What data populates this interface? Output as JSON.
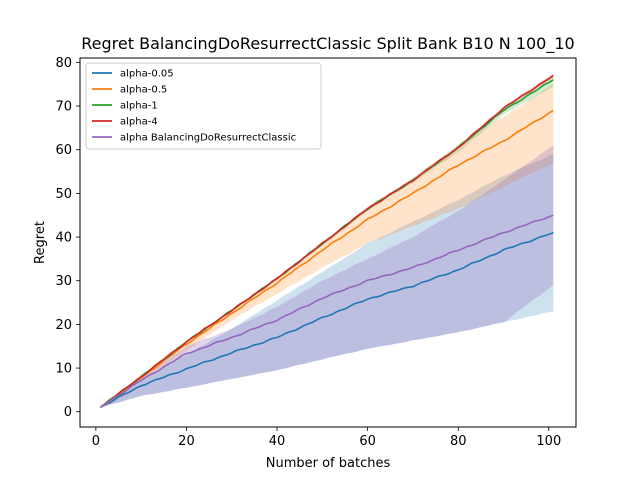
{
  "chart_data": {
    "type": "line",
    "title": "Regret BalancingDoResurrectClassic Split Bank B10 N 100_10",
    "xlabel": "Number of batches",
    "ylabel": "Regret",
    "xlim": [
      -3.5,
      106
    ],
    "ylim": [
      -3.5,
      81
    ],
    "xticks": [
      0,
      20,
      40,
      60,
      80,
      100
    ],
    "yticks": [
      0,
      10,
      20,
      30,
      40,
      50,
      60,
      70,
      80
    ],
    "legend_position": "upper-left",
    "grid": false,
    "series": [
      {
        "name": "alpha-0.05",
        "color": "#1f77b4",
        "band_opacity": 0.22,
        "x": [
          1,
          10,
          20,
          30,
          40,
          50,
          60,
          70,
          80,
          90,
          101
        ],
        "mean": [
          1,
          6,
          9.8,
          13.5,
          17,
          21.5,
          25.8,
          28.8,
          32.5,
          37,
          41
        ],
        "lower": [
          1,
          3.6,
          5.5,
          7.5,
          9.5,
          12,
          14.4,
          16.3,
          18.2,
          20.5,
          23
        ],
        "upper": [
          1,
          7.5,
          13,
          19,
          25.5,
          32,
          38.5,
          43.5,
          48.5,
          54,
          59
        ]
      },
      {
        "name": "alpha-0.5",
        "color": "#ff7f0e",
        "band_opacity": 0.22,
        "x": [
          1,
          10,
          20,
          30,
          40,
          50,
          60,
          70,
          80,
          90,
          101
        ],
        "mean": [
          1,
          7.8,
          15.5,
          22.5,
          29.5,
          37,
          44,
          50,
          56.5,
          62,
          69
        ],
        "lower": [
          1,
          7,
          14,
          21,
          27,
          33,
          38.5,
          42.5,
          46.5,
          51.5,
          57
        ],
        "upper": [
          1,
          8.2,
          16.3,
          23.3,
          30.5,
          38.5,
          46.5,
          53.5,
          61,
          67.5,
          75
        ]
      },
      {
        "name": "alpha-1",
        "color": "#2ca02c",
        "band_opacity": 0.22,
        "x": [
          1,
          10,
          20,
          30,
          40,
          50,
          60,
          70,
          80,
          90,
          101
        ],
        "mean": [
          1,
          8,
          16,
          23.2,
          30.5,
          38.5,
          46.5,
          53,
          60.5,
          69,
          76
        ],
        "lower": [
          1,
          7.8,
          15.8,
          23,
          30.2,
          38,
          46,
          52.5,
          59.5,
          68,
          74.5
        ],
        "upper": [
          1,
          8.2,
          16.2,
          23.4,
          30.8,
          38.8,
          47,
          53.5,
          61,
          69.8,
          77
        ]
      },
      {
        "name": "alpha-4",
        "color": "#d62728",
        "band_opacity": 0.22,
        "x": [
          1,
          10,
          20,
          30,
          40,
          50,
          60,
          70,
          80,
          90,
          101
        ],
        "mean": [
          1,
          8,
          16,
          23.2,
          30.5,
          38.5,
          46.5,
          53,
          60.5,
          69.5,
          77
        ],
        "lower": [
          1,
          7.9,
          15.9,
          23.1,
          30.3,
          38.3,
          46.3,
          52.8,
          60.2,
          69.2,
          76.5
        ],
        "upper": [
          1,
          8.1,
          16.1,
          23.3,
          30.7,
          38.7,
          46.7,
          53.2,
          60.8,
          69.8,
          77.5
        ]
      },
      {
        "name": "alpha BalancingDoResurrectClassic",
        "color": "#9467bd",
        "band_opacity": 0.28,
        "x": [
          1,
          10,
          20,
          30,
          40,
          50,
          60,
          70,
          80,
          90,
          101
        ],
        "mean": [
          1,
          7.2,
          13.3,
          17,
          21,
          26,
          30,
          33,
          37,
          41,
          45
        ],
        "lower": [
          1,
          3.6,
          5.5,
          7.5,
          9.5,
          12,
          14.4,
          16.3,
          18.2,
          20.5,
          29
        ],
        "upper": [
          1,
          8,
          15,
          19,
          24,
          30,
          35,
          40,
          46,
          53,
          61
        ]
      }
    ]
  }
}
